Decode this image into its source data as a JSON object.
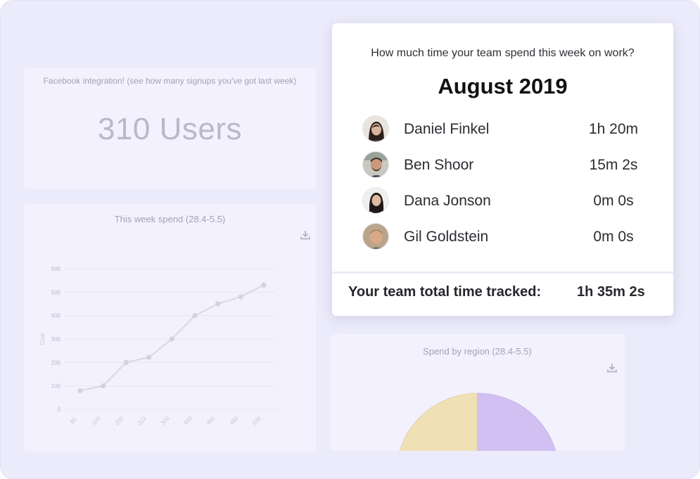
{
  "facebook_card": {
    "title": "Facebook integration! (see how many signups you've got last week)",
    "value": "310 Users"
  },
  "spend_card": {
    "title": "This week spend (28.4-5.5)",
    "icon": "download-icon"
  },
  "region_card": {
    "title": "Spend by region (28.4-5.5)",
    "icon": "download-icon",
    "slices": [
      {
        "color": "#f0e1b5"
      },
      {
        "color": "#d3c0f2"
      }
    ]
  },
  "team_card": {
    "question": "How much time your team spend this week on work?",
    "month": "August 2019",
    "members": [
      {
        "name": "Daniel Finkel",
        "time": "1h 20m"
      },
      {
        "name": "Ben Shoor",
        "time": "15m 2s"
      },
      {
        "name": "Dana Jonson",
        "time": "0m 0s"
      },
      {
        "name": "Gil Goldstein",
        "time": "0m 0s"
      }
    ],
    "total_label": "Your team total time tracked:",
    "total_value": "1h 35m 2s"
  },
  "colors": {
    "background": "#ecebfb",
    "faded_card": "#f2f1fd",
    "line": "#d8d7e2"
  },
  "chart_data": {
    "type": "line",
    "title": "This week spend (28.4-5.5)",
    "xlabel": "",
    "ylabel": "Cost",
    "x": [
      "80",
      "100",
      "200",
      "222",
      "300",
      "400",
      "450",
      "480",
      "530"
    ],
    "values": [
      80,
      100,
      200,
      222,
      300,
      400,
      450,
      480,
      530
    ],
    "yticks": [
      0,
      100,
      200,
      300,
      400,
      500,
      600
    ],
    "ylim": [
      0,
      600
    ],
    "grid": true
  }
}
